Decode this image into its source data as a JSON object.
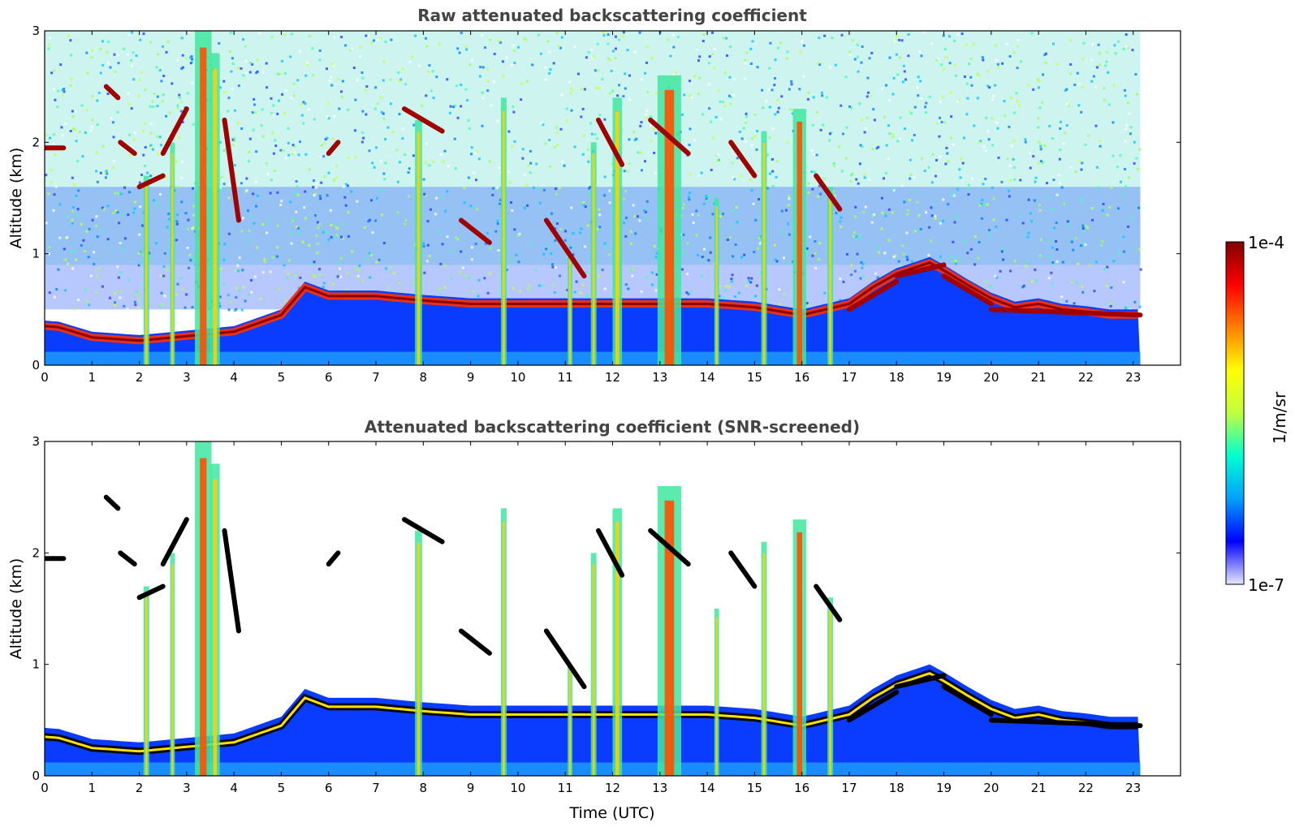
{
  "chart_data": [
    {
      "type": "heatmap",
      "title": "Raw attenuated backscattering coefficient",
      "xlabel": "",
      "ylabel": "Altitude (km)",
      "xlim": [
        0,
        24
      ],
      "ylim": [
        0,
        3
      ],
      "x_ticks": [
        "0",
        "1",
        "2",
        "3",
        "4",
        "5",
        "6",
        "7",
        "8",
        "9",
        "10",
        "11",
        "12",
        "13",
        "14",
        "15",
        "16",
        "17",
        "18",
        "19",
        "20",
        "21",
        "22",
        "23"
      ],
      "y_ticks": [
        "0",
        "1",
        "2",
        "3"
      ],
      "data_time_end": 23.15,
      "screened": false,
      "boundary_layer_top_km": [
        [
          0,
          0.35
        ],
        [
          0.3,
          0.34
        ],
        [
          1,
          0.25
        ],
        [
          2,
          0.22
        ],
        [
          3,
          0.26
        ],
        [
          4,
          0.3
        ],
        [
          5,
          0.45
        ],
        [
          5.5,
          0.7
        ],
        [
          6,
          0.62
        ],
        [
          7,
          0.62
        ],
        [
          8,
          0.58
        ],
        [
          9,
          0.55
        ],
        [
          10,
          0.55
        ],
        [
          11,
          0.55
        ],
        [
          12,
          0.55
        ],
        [
          13,
          0.55
        ],
        [
          14,
          0.55
        ],
        [
          15,
          0.52
        ],
        [
          16,
          0.45
        ],
        [
          17,
          0.55
        ],
        [
          17.5,
          0.7
        ],
        [
          18,
          0.82
        ],
        [
          18.7,
          0.92
        ],
        [
          19,
          0.85
        ],
        [
          19.5,
          0.72
        ],
        [
          20,
          0.6
        ],
        [
          20.5,
          0.52
        ],
        [
          21,
          0.55
        ],
        [
          21.5,
          0.5
        ],
        [
          22,
          0.48
        ],
        [
          22.5,
          0.45
        ],
        [
          23.15,
          0.45
        ]
      ],
      "precipitation_columns": [
        {
          "t": 2.15,
          "top_km": 1.7,
          "w": 0.12
        },
        {
          "t": 2.7,
          "top_km": 2.0,
          "w": 0.1
        },
        {
          "t": 3.35,
          "top_km": 3.0,
          "w": 0.35
        },
        {
          "t": 3.6,
          "top_km": 2.8,
          "w": 0.2
        },
        {
          "t": 7.9,
          "top_km": 2.2,
          "w": 0.15
        },
        {
          "t": 9.7,
          "top_km": 2.4,
          "w": 0.12
        },
        {
          "t": 11.1,
          "top_km": 1.0,
          "w": 0.1
        },
        {
          "t": 11.6,
          "top_km": 2.0,
          "w": 0.12
        },
        {
          "t": 12.1,
          "top_km": 2.4,
          "w": 0.2
        },
        {
          "t": 13.2,
          "top_km": 2.6,
          "w": 0.5
        },
        {
          "t": 14.2,
          "top_km": 1.5,
          "w": 0.1
        },
        {
          "t": 15.2,
          "top_km": 2.1,
          "w": 0.12
        },
        {
          "t": 15.95,
          "top_km": 2.3,
          "w": 0.28
        },
        {
          "t": 16.6,
          "top_km": 1.6,
          "w": 0.12
        }
      ],
      "cloud_segments": [
        {
          "t0": 0,
          "t1": 0.4,
          "z0": 1.95,
          "z1": 1.95
        },
        {
          "t0": 1.3,
          "t1": 1.55,
          "z0": 2.5,
          "z1": 2.4
        },
        {
          "t0": 1.6,
          "t1": 1.9,
          "z0": 2.0,
          "z1": 1.9
        },
        {
          "t0": 2.0,
          "t1": 2.5,
          "z0": 1.6,
          "z1": 1.7
        },
        {
          "t0": 2.5,
          "t1": 3.0,
          "z0": 1.9,
          "z1": 2.3
        },
        {
          "t0": 3.8,
          "t1": 4.1,
          "z0": 2.2,
          "z1": 1.3
        },
        {
          "t0": 6.0,
          "t1": 6.2,
          "z0": 1.9,
          "z1": 2.0
        },
        {
          "t0": 7.6,
          "t1": 8.4,
          "z0": 2.3,
          "z1": 2.1
        },
        {
          "t0": 8.8,
          "t1": 9.4,
          "z0": 1.3,
          "z1": 1.1
        },
        {
          "t0": 10.6,
          "t1": 11.4,
          "z0": 1.3,
          "z1": 0.8
        },
        {
          "t0": 11.7,
          "t1": 12.2,
          "z0": 2.2,
          "z1": 1.8
        },
        {
          "t0": 12.8,
          "t1": 13.6,
          "z0": 2.2,
          "z1": 1.9
        },
        {
          "t0": 14.5,
          "t1": 15.0,
          "z0": 2.0,
          "z1": 1.7
        },
        {
          "t0": 16.3,
          "t1": 16.8,
          "z0": 1.7,
          "z1": 1.4
        },
        {
          "t0": 17.0,
          "t1": 18.0,
          "z0": 0.5,
          "z1": 0.75
        },
        {
          "t0": 18.0,
          "t1": 19.0,
          "z0": 0.8,
          "z1": 0.9
        },
        {
          "t0": 19.0,
          "t1": 20.0,
          "z0": 0.8,
          "z1": 0.55
        },
        {
          "t0": 20.0,
          "t1": 23.15,
          "z0": 0.5,
          "z1": 0.45
        }
      ]
    },
    {
      "type": "heatmap",
      "title": "Attenuated backscattering coefficient (SNR-screened)",
      "xlabel": "Time (UTC)",
      "ylabel": "Altitude (km)",
      "xlim": [
        0,
        24
      ],
      "ylim": [
        0,
        3
      ],
      "x_ticks": [
        "0",
        "1",
        "2",
        "3",
        "4",
        "5",
        "6",
        "7",
        "8",
        "9",
        "10",
        "11",
        "12",
        "13",
        "14",
        "15",
        "16",
        "17",
        "18",
        "19",
        "20",
        "21",
        "22",
        "23"
      ],
      "y_ticks": [
        "0",
        "1",
        "2",
        "3"
      ],
      "data_time_end": 23.15,
      "screened": true
    }
  ],
  "colorbar": {
    "label": "1/m/sr",
    "max_label": "1e-4",
    "min_label": "1e-7",
    "scale": "log",
    "colormap": "jet",
    "colors": [
      "#e8e8ff",
      "#0000ff",
      "#00a0ff",
      "#00ffd0",
      "#c0ff40",
      "#ffff00",
      "#ff8000",
      "#ff0000",
      "#800000"
    ]
  }
}
